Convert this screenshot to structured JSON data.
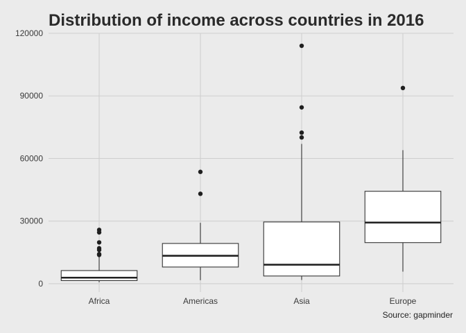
{
  "chart_data": {
    "type": "boxplot",
    "title": "Distribution of income across countries in 2016",
    "caption": "Source: gapminder",
    "xlabel": "",
    "ylabel": "",
    "ylim": [
      -4000,
      120000
    ],
    "y_ticks": [
      0,
      30000,
      60000,
      90000,
      120000
    ],
    "grid": true,
    "legend": "none",
    "categories": [
      "Africa",
      "Americas",
      "Asia",
      "Europe"
    ],
    "boxes": [
      {
        "category": "Africa",
        "whisker_low": 700,
        "q1": 1500,
        "median": 2900,
        "q3": 6300,
        "whisker_high": 12800,
        "outliers": [
          25800,
          24600,
          19800,
          17000,
          16200,
          14200,
          13800
        ]
      },
      {
        "category": "Americas",
        "whisker_low": 1700,
        "q1": 8000,
        "median": 13400,
        "q3": 19300,
        "whisker_high": 29200,
        "outliers": [
          53600,
          43100
        ]
      },
      {
        "category": "Asia",
        "whisker_low": 1800,
        "q1": 3700,
        "median": 9100,
        "q3": 29600,
        "whisker_high": 67000,
        "outliers": [
          114000,
          84500,
          72400,
          70100
        ]
      },
      {
        "category": "Europe",
        "whisker_low": 5800,
        "q1": 19700,
        "median": 29300,
        "q3": 44300,
        "whisker_high": 64000,
        "outliers": [
          93800
        ]
      }
    ]
  }
}
